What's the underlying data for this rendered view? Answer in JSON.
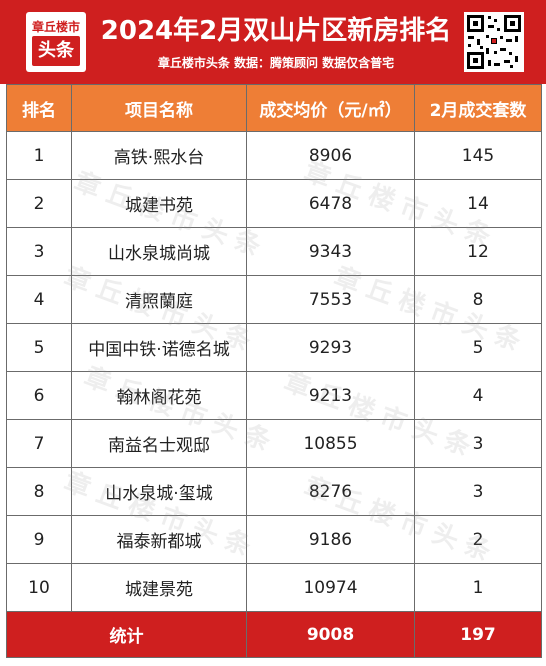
{
  "header": {
    "logo_top": "章丘楼市",
    "logo_bottom": "头条",
    "title": "2024年2月双山片区新房排名",
    "subtitle": "章丘楼市头条  数据：腾策顾问  数据仅含普宅",
    "bg_color": "#cf1f1f",
    "qr_icon": "qr-code-icon"
  },
  "table": {
    "header_color": "#ee7e36",
    "headers": [
      "排名",
      "项目名称",
      "成交均价（元/㎡）",
      "2月成交套数"
    ],
    "rows": [
      [
        "1",
        "高铁·熙水台",
        "8906",
        "145"
      ],
      [
        "2",
        "城建书苑",
        "6478",
        "14"
      ],
      [
        "3",
        "山水泉城尚城",
        "9343",
        "12"
      ],
      [
        "4",
        "清照蘭庭",
        "7553",
        "8"
      ],
      [
        "5",
        "中国中铁·诺德名城",
        "9293",
        "5"
      ],
      [
        "6",
        "翰林阁花苑",
        "9213",
        "4"
      ],
      [
        "7",
        "南益名士观邸",
        "10855",
        "3"
      ],
      [
        "8",
        "山水泉城·玺城",
        "8276",
        "3"
      ],
      [
        "9",
        "福泰新都城",
        "9186",
        "2"
      ],
      [
        "10",
        "城建景苑",
        "10974",
        "1"
      ]
    ],
    "total": [
      "统计",
      "",
      "9008",
      "197"
    ]
  },
  "watermark": "章丘楼市头条"
}
